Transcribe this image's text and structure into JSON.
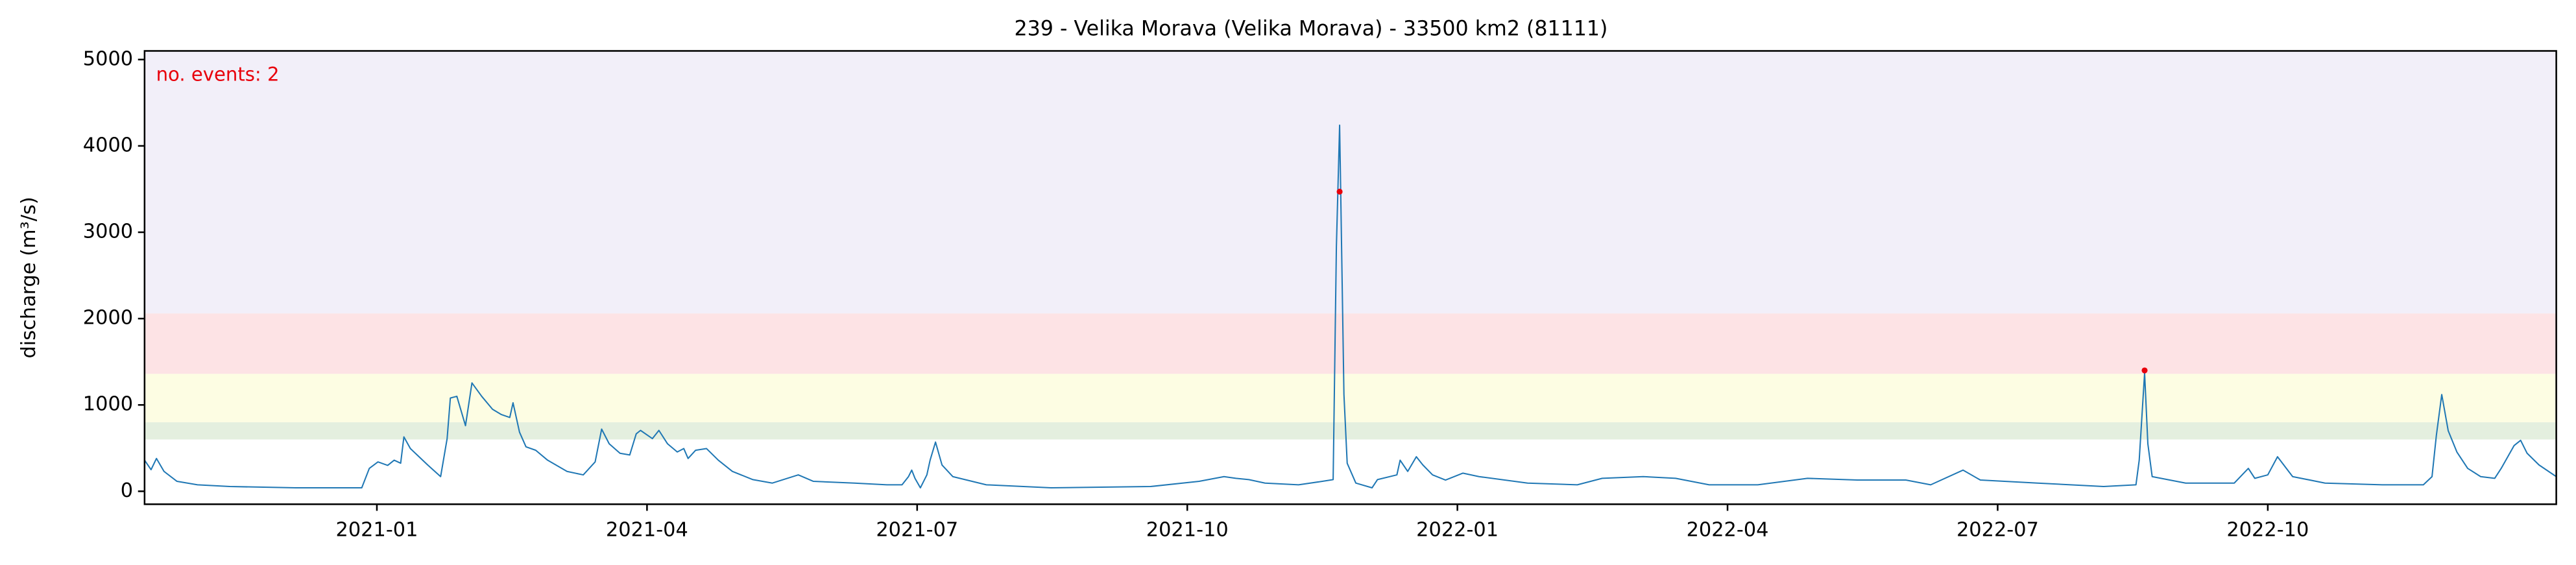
{
  "chart_data": {
    "type": "line",
    "title": "239 - Velika Morava (Velika Morava) - 33500 km2 (81111)",
    "y_label": "discharge (m³/s)",
    "annotation": "no. events: 2",
    "annotation_color": "#e8000b",
    "xlim": [
      2020.785,
      2023.017
    ],
    "ylim": [
      -150,
      5100
    ],
    "xticks": [
      {
        "value": 2021.0,
        "label": "2021-01"
      },
      {
        "value": 2021.25,
        "label": "2021-04"
      },
      {
        "value": 2021.5,
        "label": "2021-07"
      },
      {
        "value": 2021.75,
        "label": "2021-10"
      },
      {
        "value": 2022.0,
        "label": "2022-01"
      },
      {
        "value": 2022.25,
        "label": "2022-04"
      },
      {
        "value": 2022.5,
        "label": "2022-07"
      },
      {
        "value": 2022.75,
        "label": "2022-10"
      }
    ],
    "yticks": [
      0,
      1000,
      2000,
      3000,
      4000,
      5000
    ],
    "bands": [
      {
        "from": 600,
        "to": 800,
        "color": "#e4efdf"
      },
      {
        "from": 800,
        "to": 1360,
        "color": "#fdfde3"
      },
      {
        "from": 1360,
        "to": 2060,
        "color": "#fde3e5"
      },
      {
        "from": 2060,
        "to": 5100,
        "color": "#f2eff9"
      }
    ],
    "series": [
      {
        "type": "line",
        "color": "#1f77b4",
        "x": [
          2020.785,
          2020.791,
          2020.796,
          2020.803,
          2020.815,
          2020.834,
          2020.864,
          2020.925,
          2020.986,
          2020.993,
          2021.001,
          2021.01,
          2021.016,
          2021.022,
          2021.025,
          2021.031,
          2021.039,
          2021.047,
          2021.059,
          2021.065,
          2021.068,
          2021.074,
          2021.082,
          2021.088,
          2021.097,
          2021.107,
          2021.115,
          2021.123,
          2021.126,
          2021.132,
          2021.138,
          2021.147,
          2021.158,
          2021.176,
          2021.191,
          2021.202,
          2021.208,
          2021.215,
          2021.225,
          2021.234,
          2021.24,
          2021.244,
          2021.255,
          2021.261,
          2021.269,
          2021.278,
          2021.284,
          2021.288,
          2021.295,
          2021.305,
          2021.316,
          2021.329,
          2021.348,
          2021.366,
          2021.39,
          2021.404,
          2021.442,
          2021.472,
          2021.486,
          2021.492,
          2021.495,
          2021.498,
          2021.503,
          2021.509,
          2021.512,
          2021.517,
          2021.523,
          2021.533,
          2021.564,
          2021.624,
          2021.716,
          2021.761,
          2021.784,
          2021.795,
          2021.807,
          2021.822,
          2021.853,
          2021.875,
          2021.885,
          2021.888,
          2021.891,
          2021.892,
          2021.895,
          2021.898,
          2021.906,
          2021.921,
          2021.926,
          2021.944,
          2021.947,
          2021.954,
          2021.962,
          2021.968,
          2021.977,
          2021.989,
          2022.005,
          2022.02,
          2022.065,
          2022.111,
          2022.134,
          2022.172,
          2022.202,
          2022.233,
          2022.278,
          2022.324,
          2022.37,
          2022.415,
          2022.438,
          2022.468,
          2022.484,
          2022.537,
          2022.598,
          2022.628,
          2022.631,
          2022.636,
          2022.639,
          2022.643,
          2022.674,
          2022.719,
          2022.732,
          2022.738,
          2022.75,
          2022.759,
          2022.773,
          2022.803,
          2022.856,
          2022.894,
          2022.902,
          2022.906,
          2022.911,
          2022.917,
          2022.925,
          2022.935,
          2022.947,
          2022.96,
          2022.966,
          2022.978,
          2022.984,
          2022.99,
          2023.001,
          2023.017
        ],
        "values": [
          360,
          250,
          380,
          230,
          115,
          75,
          55,
          40,
          40,
          265,
          340,
          300,
          360,
          325,
          630,
          495,
          400,
          305,
          170,
          610,
          1080,
          1100,
          760,
          1255,
          1100,
          950,
          890,
          855,
          1025,
          685,
          515,
          475,
          360,
          230,
          190,
          340,
          720,
          550,
          440,
          420,
          665,
          705,
          610,
          705,
          550,
          455,
          495,
          380,
          475,
          495,
          360,
          230,
          135,
          95,
          190,
          115,
          95,
          75,
          75,
          170,
          245,
          150,
          40,
          190,
          360,
          570,
          305,
          170,
          75,
          40,
          55,
          115,
          170,
          150,
          135,
          95,
          75,
          115,
          135,
          2830,
          4240,
          3470,
          1120,
          325,
          95,
          40,
          135,
          190,
          360,
          230,
          400,
          305,
          190,
          130,
          210,
          170,
          95,
          75,
          150,
          170,
          150,
          75,
          75,
          150,
          130,
          130,
          75,
          245,
          130,
          95,
          55,
          75,
          360,
          1370,
          550,
          170,
          95,
          95,
          265,
          150,
          190,
          400,
          170,
          95,
          75,
          75,
          170,
          645,
          1120,
          700,
          455,
          265,
          170,
          150,
          265,
          530,
          590,
          440,
          305,
          170
        ]
      },
      {
        "type": "scatter",
        "color": "#e8000b",
        "x": [
          2021.891,
          2022.636
        ],
        "values": [
          3470,
          1400
        ]
      }
    ]
  }
}
